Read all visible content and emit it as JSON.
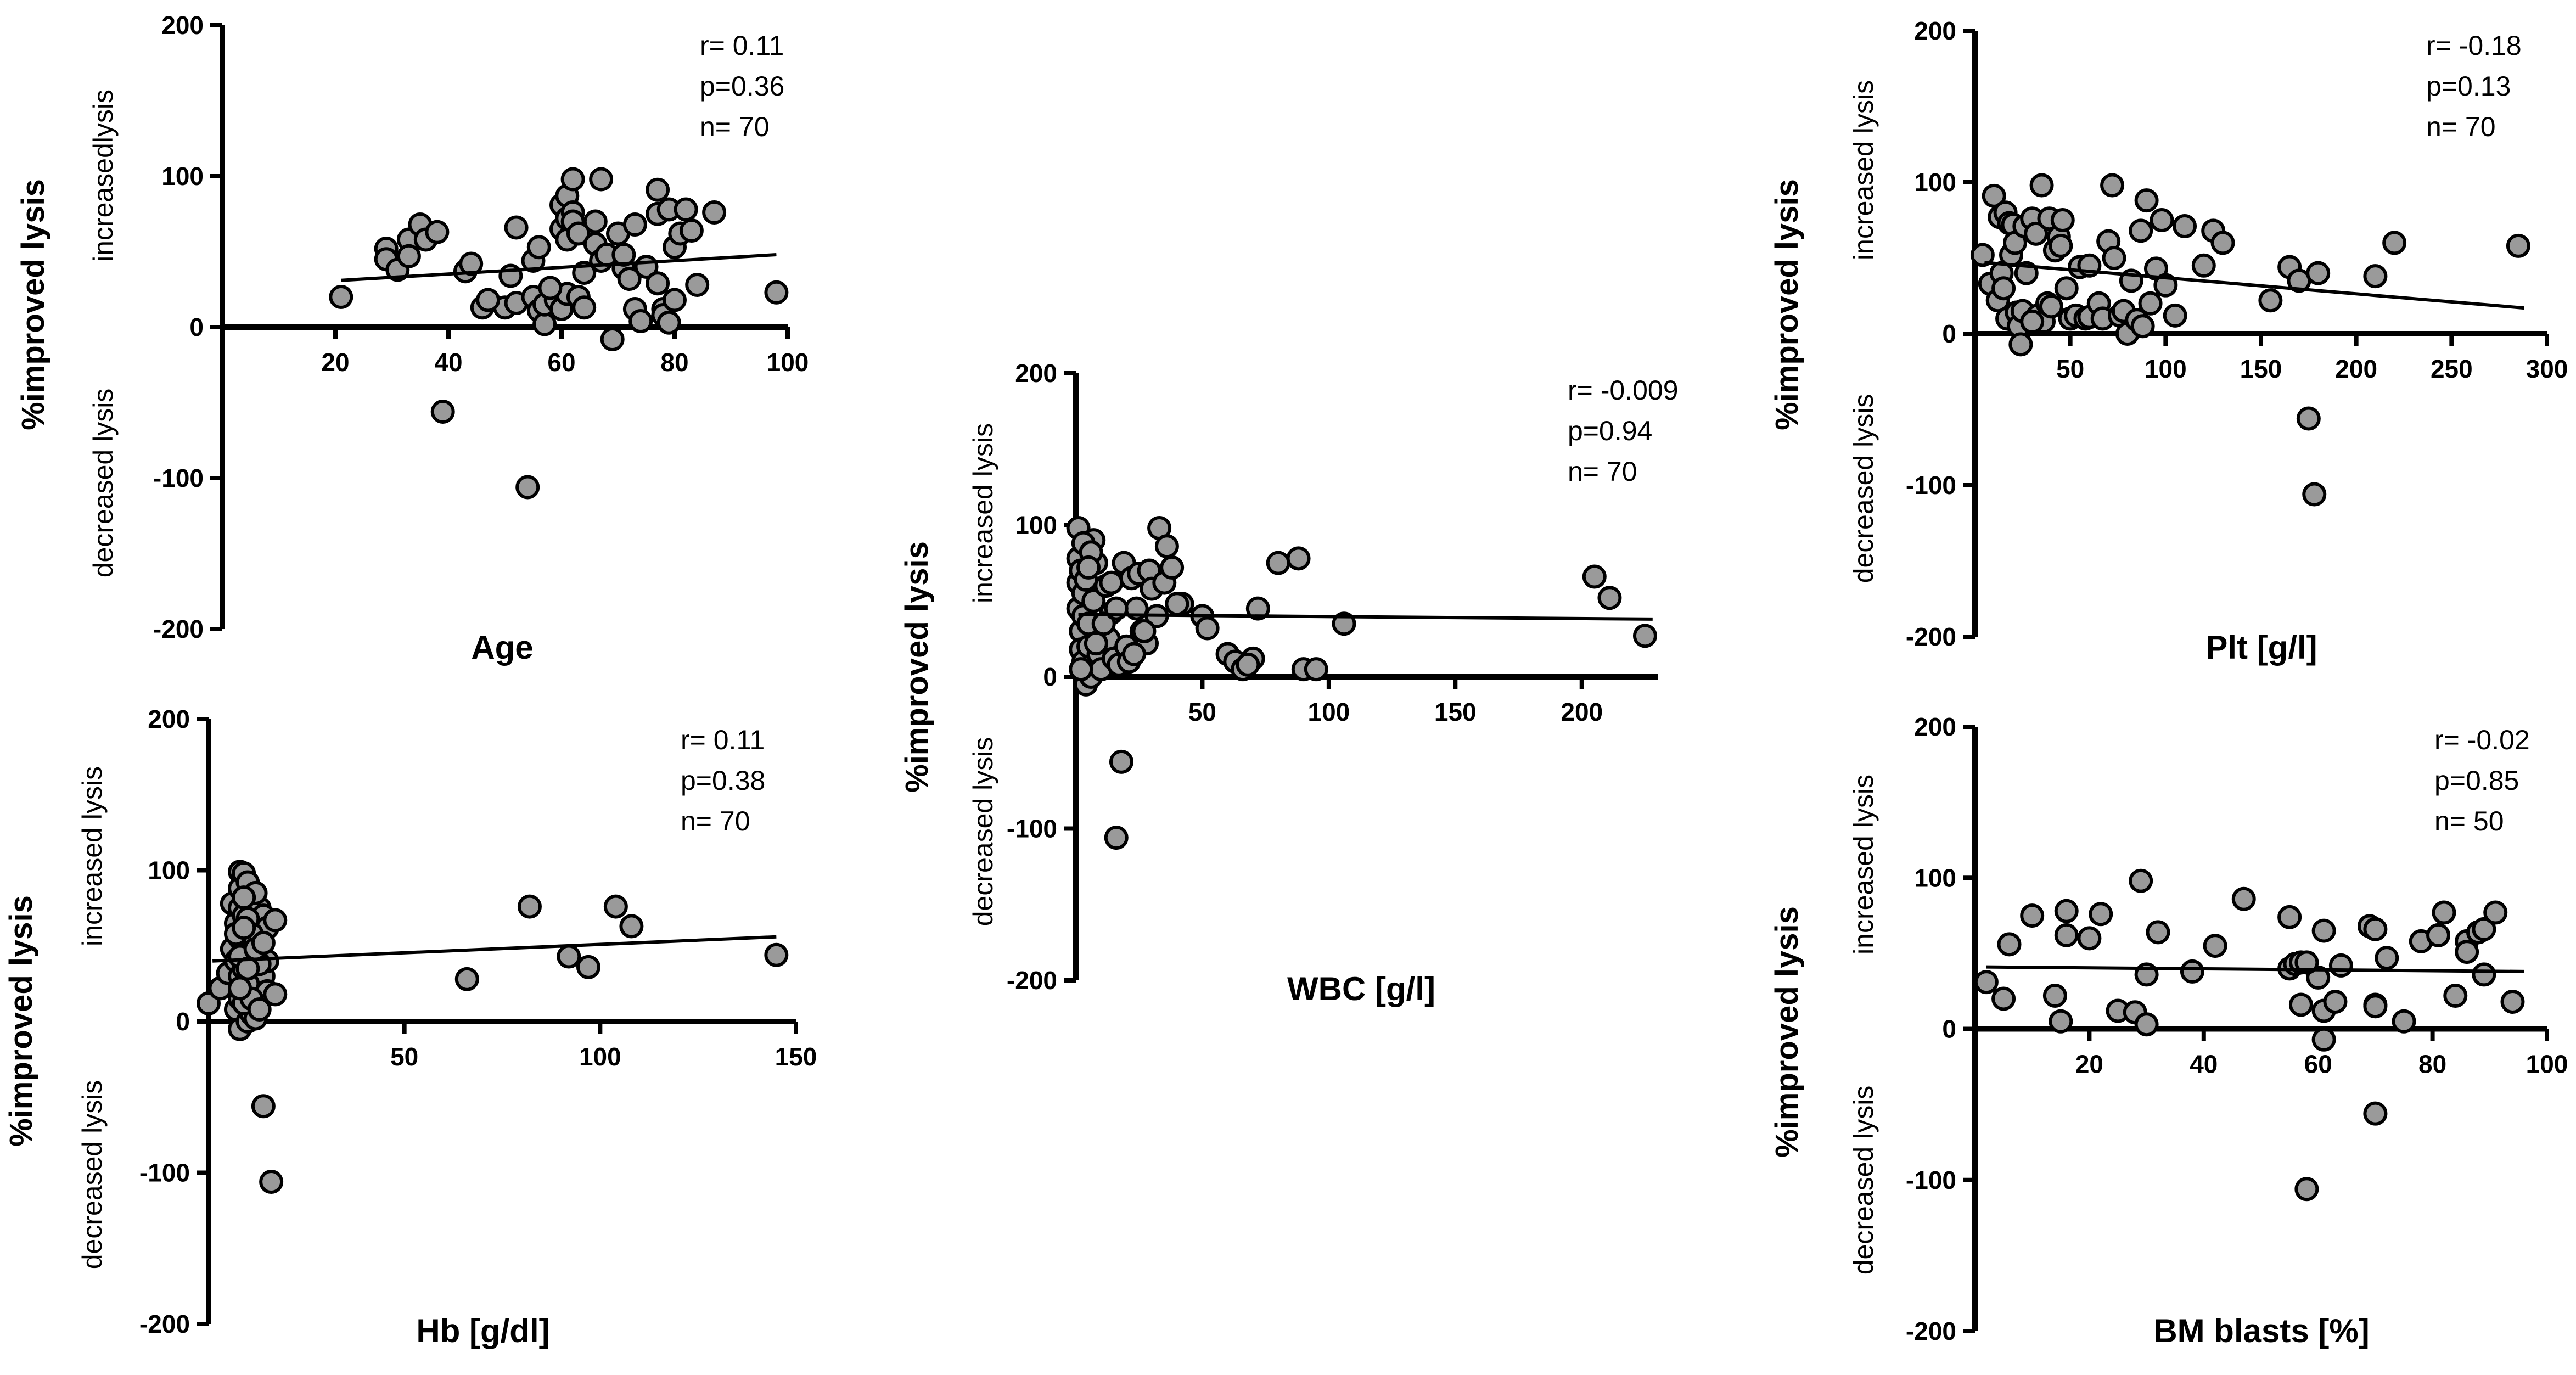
{
  "chart_data": [
    {
      "type": "scatter",
      "xlabel": "Age",
      "ylabel": "%improved lysis",
      "ylabel_up": "increasedlysis",
      "ylabel_down": "decreased lysis",
      "xticks": [
        20,
        40,
        60,
        80,
        100
      ],
      "yticks": [
        -200,
        -100,
        0,
        100,
        200
      ],
      "xlim": [
        0,
        100
      ],
      "ylim": [
        -200,
        200
      ],
      "stats": [
        "r= 0.11",
        "p=0.36",
        "n= 70"
      ],
      "fit": [
        [
          21,
          31
        ],
        [
          98,
          48
        ]
      ],
      "points": [
        [
          21,
          20
        ],
        [
          29,
          52
        ],
        [
          29,
          45
        ],
        [
          31,
          38
        ],
        [
          33,
          58
        ],
        [
          33,
          47
        ],
        [
          35,
          68
        ],
        [
          36,
          58
        ],
        [
          38,
          63
        ],
        [
          39,
          -56
        ],
        [
          43,
          37
        ],
        [
          44,
          42
        ],
        [
          46,
          13
        ],
        [
          50,
          13
        ],
        [
          51,
          34
        ],
        [
          52,
          66
        ],
        [
          52,
          16
        ],
        [
          54,
          -106
        ],
        [
          55,
          44
        ],
        [
          55,
          20
        ],
        [
          56,
          53
        ],
        [
          56,
          11
        ],
        [
          57,
          2
        ],
        [
          57,
          15
        ],
        [
          59,
          18
        ],
        [
          60,
          81
        ],
        [
          60,
          65
        ],
        [
          60,
          12
        ],
        [
          61,
          87
        ],
        [
          61,
          72
        ],
        [
          61,
          58
        ],
        [
          61,
          22
        ],
        [
          62,
          98
        ],
        [
          62,
          76
        ],
        [
          62,
          70
        ],
        [
          63,
          62
        ],
        [
          63,
          20
        ],
        [
          64,
          36
        ],
        [
          64,
          13
        ],
        [
          66,
          55
        ],
        [
          67,
          98
        ],
        [
          67,
          44
        ],
        [
          68,
          48
        ],
        [
          69,
          -8
        ],
        [
          70,
          62
        ],
        [
          71,
          39
        ],
        [
          72,
          32
        ],
        [
          73,
          68
        ],
        [
          73,
          12
        ],
        [
          74,
          4
        ],
        [
          75,
          40
        ],
        [
          77,
          91
        ],
        [
          77,
          75
        ],
        [
          77,
          29
        ],
        [
          78,
          12
        ],
        [
          78,
          8
        ],
        [
          79,
          78
        ],
        [
          79,
          3
        ],
        [
          80,
          53
        ],
        [
          80,
          18
        ],
        [
          81,
          62
        ],
        [
          82,
          78
        ],
        [
          84,
          28
        ],
        [
          87,
          76
        ],
        [
          98,
          23
        ],
        [
          66,
          70
        ],
        [
          58,
          26
        ],
        [
          47,
          18
        ],
        [
          71,
          48
        ],
        [
          83,
          64
        ]
      ]
    },
    {
      "type": "scatter",
      "xlabel": "Plt [g/l]",
      "ylabel": "%improved lysis",
      "ylabel_up": "increased lysis",
      "ylabel_down": "decreased lysis",
      "xticks": [
        50,
        100,
        150,
        200,
        250,
        300
      ],
      "yticks": [
        -200,
        -100,
        0,
        100,
        200
      ],
      "xlim": [
        0,
        300
      ],
      "ylim": [
        -200,
        200
      ],
      "stats": [
        "r= -0.18",
        "p=0.13",
        "n= 70"
      ],
      "fit": [
        [
          5,
          47
        ],
        [
          288,
          17
        ]
      ],
      "points": [
        [
          4,
          52
        ],
        [
          8,
          33
        ],
        [
          10,
          91
        ],
        [
          12,
          22
        ],
        [
          13,
          77
        ],
        [
          14,
          40
        ],
        [
          15,
          30
        ],
        [
          16,
          80
        ],
        [
          17,
          10
        ],
        [
          18,
          73
        ],
        [
          19,
          52
        ],
        [
          20,
          72
        ],
        [
          21,
          60
        ],
        [
          22,
          14
        ],
        [
          23,
          5
        ],
        [
          24,
          -7
        ],
        [
          25,
          15
        ],
        [
          26,
          71
        ],
        [
          27,
          40
        ],
        [
          30,
          76
        ],
        [
          32,
          66
        ],
        [
          33,
          12
        ],
        [
          35,
          98
        ],
        [
          36,
          8
        ],
        [
          38,
          20
        ],
        [
          39,
          76
        ],
        [
          40,
          18
        ],
        [
          42,
          55
        ],
        [
          44,
          64
        ],
        [
          46,
          75
        ],
        [
          48,
          30
        ],
        [
          50,
          10
        ],
        [
          53,
          12
        ],
        [
          55,
          44
        ],
        [
          58,
          10
        ],
        [
          60,
          11
        ],
        [
          65,
          20
        ],
        [
          67,
          10
        ],
        [
          70,
          61
        ],
        [
          72,
          98
        ],
        [
          73,
          50
        ],
        [
          76,
          12
        ],
        [
          78,
          15
        ],
        [
          80,
          0
        ],
        [
          82,
          35
        ],
        [
          85,
          9
        ],
        [
          87,
          68
        ],
        [
          88,
          5
        ],
        [
          90,
          88
        ],
        [
          92,
          20
        ],
        [
          95,
          43
        ],
        [
          98,
          75
        ],
        [
          100,
          32
        ],
        [
          105,
          12
        ],
        [
          110,
          71
        ],
        [
          120,
          45
        ],
        [
          125,
          68
        ],
        [
          130,
          60
        ],
        [
          155,
          22
        ],
        [
          165,
          44
        ],
        [
          170,
          35
        ],
        [
          175,
          -56
        ],
        [
          178,
          -106
        ],
        [
          180,
          40
        ],
        [
          210,
          38
        ],
        [
          220,
          60
        ],
        [
          285,
          58
        ],
        [
          30,
          8
        ],
        [
          60,
          45
        ],
        [
          45,
          58
        ]
      ]
    },
    {
      "type": "scatter",
      "xlabel": "WBC [g/l]",
      "ylabel": "%improved lysis",
      "ylabel_up": "increased lysis",
      "ylabel_down": "decreased lysis",
      "xticks": [
        50,
        100,
        150,
        200
      ],
      "yticks": [
        -200,
        -100,
        0,
        100,
        200
      ],
      "xlim": [
        0,
        230
      ],
      "ylim": [
        -200,
        200
      ],
      "stats": [
        "r= -0.009",
        "p=0.94",
        "n= 70"
      ],
      "fit": [
        [
          1,
          41
        ],
        [
          228,
          38
        ]
      ],
      "points": [
        [
          1,
          98
        ],
        [
          1,
          78
        ],
        [
          1,
          62
        ],
        [
          1,
          45
        ],
        [
          2,
          30
        ],
        [
          2,
          18
        ],
        [
          2,
          70
        ],
        [
          3,
          55
        ],
        [
          3,
          40
        ],
        [
          3,
          10
        ],
        [
          4,
          -5
        ],
        [
          4,
          64
        ],
        [
          5,
          35
        ],
        [
          5,
          20
        ],
        [
          6,
          0
        ],
        [
          7,
          50
        ],
        [
          7,
          90
        ],
        [
          8,
          75
        ],
        [
          9,
          15
        ],
        [
          10,
          5
        ],
        [
          12,
          60
        ],
        [
          13,
          25
        ],
        [
          14,
          42
        ],
        [
          15,
          12
        ],
        [
          16,
          -106
        ],
        [
          17,
          8
        ],
        [
          18,
          -56
        ],
        [
          19,
          75
        ],
        [
          20,
          20
        ],
        [
          21,
          10
        ],
        [
          22,
          65
        ],
        [
          24,
          45
        ],
        [
          25,
          68
        ],
        [
          26,
          30
        ],
        [
          28,
          22
        ],
        [
          29,
          70
        ],
        [
          30,
          58
        ],
        [
          32,
          40
        ],
        [
          33,
          98
        ],
        [
          35,
          62
        ],
        [
          36,
          86
        ],
        [
          38,
          72
        ],
        [
          42,
          48
        ],
        [
          50,
          40
        ],
        [
          52,
          32
        ],
        [
          60,
          15
        ],
        [
          63,
          10
        ],
        [
          66,
          5
        ],
        [
          70,
          12
        ],
        [
          72,
          45
        ],
        [
          80,
          75
        ],
        [
          88,
          78
        ],
        [
          90,
          5
        ],
        [
          95,
          5
        ],
        [
          106,
          35
        ],
        [
          205,
          66
        ],
        [
          211,
          52
        ],
        [
          225,
          27
        ],
        [
          3,
          88
        ],
        [
          11,
          35
        ],
        [
          16,
          45
        ],
        [
          23,
          15
        ],
        [
          40,
          48
        ],
        [
          68,
          8
        ],
        [
          8,
          22
        ],
        [
          6,
          82
        ],
        [
          2,
          5
        ],
        [
          5,
          72
        ],
        [
          14,
          62
        ],
        [
          27,
          30
        ]
      ]
    },
    {
      "type": "scatter",
      "xlabel": "Hb [g/dl]",
      "ylabel": "%improved lysis",
      "ylabel_up": "increased lysis",
      "ylabel_down": "decreased lysis",
      "xticks": [
        50,
        100,
        150
      ],
      "yticks": [
        -200,
        -100,
        0,
        100,
        200
      ],
      "xlim": [
        0,
        150
      ],
      "ylim": [
        -200,
        200
      ],
      "stats": [
        "r= 0.11",
        "p=0.38",
        "n= 70"
      ],
      "fit": [
        [
          1,
          40
        ],
        [
          145,
          56
        ]
      ],
      "points": [
        [
          0,
          12
        ],
        [
          3,
          22
        ],
        [
          5,
          32
        ],
        [
          6,
          78
        ],
        [
          6,
          48
        ],
        [
          7,
          65
        ],
        [
          7,
          40
        ],
        [
          7,
          8
        ],
        [
          8,
          99
        ],
        [
          8,
          88
        ],
        [
          8,
          75
        ],
        [
          8,
          55
        ],
        [
          8,
          30
        ],
        [
          8,
          15
        ],
        [
          8,
          -5
        ],
        [
          9,
          98
        ],
        [
          9,
          70
        ],
        [
          9,
          50
        ],
        [
          9,
          35
        ],
        [
          9,
          20
        ],
        [
          10,
          92
        ],
        [
          10,
          60
        ],
        [
          10,
          45
        ],
        [
          10,
          10
        ],
        [
          10,
          0
        ],
        [
          11,
          80
        ],
        [
          11,
          65
        ],
        [
          11,
          42
        ],
        [
          11,
          28
        ],
        [
          11,
          5
        ],
        [
          12,
          72
        ],
        [
          12,
          55
        ],
        [
          12,
          38
        ],
        [
          12,
          18
        ],
        [
          12,
          2
        ],
        [
          13,
          75
        ],
        [
          13,
          48
        ],
        [
          13,
          25
        ],
        [
          14,
          70
        ],
        [
          14,
          30
        ],
        [
          14,
          -56
        ],
        [
          15,
          62
        ],
        [
          15,
          40
        ],
        [
          15,
          20
        ],
        [
          16,
          -106
        ],
        [
          17,
          67
        ],
        [
          17,
          18
        ],
        [
          66,
          28
        ],
        [
          82,
          76
        ],
        [
          92,
          43
        ],
        [
          97,
          36
        ],
        [
          104,
          76
        ],
        [
          108,
          63
        ],
        [
          145,
          44
        ],
        [
          9,
          12
        ],
        [
          10,
          25
        ],
        [
          11,
          58
        ],
        [
          12,
          85
        ],
        [
          13,
          38
        ],
        [
          8,
          43
        ],
        [
          7,
          58
        ],
        [
          9,
          82
        ],
        [
          11,
          15
        ],
        [
          10,
          68
        ],
        [
          12,
          48
        ],
        [
          13,
          8
        ],
        [
          8,
          22
        ],
        [
          10,
          35
        ],
        [
          14,
          52
        ],
        [
          9,
          62
        ]
      ]
    },
    {
      "type": "scatter",
      "xlabel": "BM blasts [%]",
      "ylabel": "%improved lysis",
      "ylabel_up": "increased lysis",
      "ylabel_down": "decreased lysis",
      "xticks": [
        20,
        40,
        60,
        80,
        100
      ],
      "yticks": [
        -200,
        -100,
        0,
        100,
        200
      ],
      "xlim": [
        0,
        100
      ],
      "ylim": [
        -200,
        200
      ],
      "stats": [
        "r= -0.02",
        "p=0.85",
        "n= 50"
      ],
      "fit": [
        [
          2,
          41
        ],
        [
          96,
          38
        ]
      ],
      "points": [
        [
          2,
          31
        ],
        [
          5,
          20
        ],
        [
          6,
          56
        ],
        [
          10,
          75
        ],
        [
          14,
          22
        ],
        [
          15,
          5
        ],
        [
          16,
          78
        ],
        [
          16,
          62
        ],
        [
          20,
          60
        ],
        [
          22,
          76
        ],
        [
          25,
          12
        ],
        [
          28,
          11
        ],
        [
          29,
          98
        ],
        [
          30,
          36
        ],
        [
          30,
          3
        ],
        [
          32,
          64
        ],
        [
          38,
          38
        ],
        [
          42,
          55
        ],
        [
          47,
          86
        ],
        [
          55,
          74
        ],
        [
          55,
          40
        ],
        [
          56,
          43
        ],
        [
          57,
          16
        ],
        [
          57,
          44
        ],
        [
          58,
          -106
        ],
        [
          60,
          34
        ],
        [
          61,
          65
        ],
        [
          61,
          12
        ],
        [
          61,
          -7
        ],
        [
          63,
          18
        ],
        [
          64,
          42
        ],
        [
          69,
          68
        ],
        [
          70,
          66
        ],
        [
          70,
          16
        ],
        [
          70,
          15
        ],
        [
          70,
          -56
        ],
        [
          72,
          47
        ],
        [
          75,
          5
        ],
        [
          78,
          58
        ],
        [
          81,
          62
        ],
        [
          82,
          77
        ],
        [
          84,
          22
        ],
        [
          86,
          58
        ],
        [
          86,
          51
        ],
        [
          88,
          64
        ],
        [
          89,
          66
        ],
        [
          89,
          36
        ],
        [
          91,
          77
        ],
        [
          94,
          18
        ],
        [
          58,
          44
        ]
      ]
    }
  ]
}
